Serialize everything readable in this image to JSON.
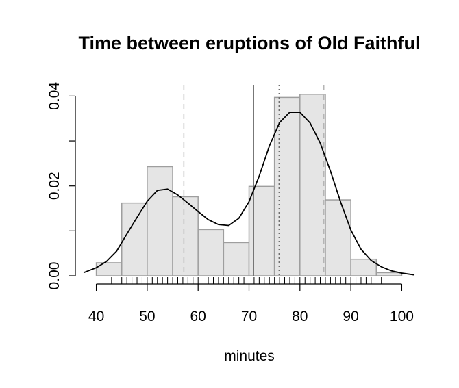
{
  "chart_data": {
    "type": "bar",
    "title": "Time between eruptions of Old Faithful",
    "xlabel": "minutes",
    "ylabel": "",
    "xlim": [
      37.5,
      102.5
    ],
    "ylim": [
      0,
      0.0425
    ],
    "x_ticks": [
      40,
      50,
      60,
      70,
      80,
      90,
      100
    ],
    "x_tick_labels": [
      "40",
      "50",
      "60",
      "70",
      "80",
      "90",
      "100"
    ],
    "y_ticks": [
      0,
      0.01,
      0.02,
      0.03,
      0.04
    ],
    "y_tick_labels": [
      "0.00",
      "",
      "0.02",
      "",
      "0.04"
    ],
    "histogram": {
      "bin_edges": [
        40,
        45,
        50,
        55,
        60,
        65,
        70,
        75,
        80,
        85,
        90,
        95,
        100
      ],
      "density": [
        0.0029,
        0.0162,
        0.0243,
        0.0176,
        0.0103,
        0.0074,
        0.0199,
        0.0397,
        0.0404,
        0.0169,
        0.0037,
        0.0007
      ],
      "fill_color": "#e5e5e5",
      "edge_color": "#9e9e9e"
    },
    "density_curve": {
      "x": [
        37.5,
        40,
        42,
        44,
        46,
        48,
        50,
        52,
        54,
        56,
        58,
        60,
        62,
        64,
        66,
        68,
        70,
        72,
        74,
        76,
        78,
        80,
        82,
        84,
        86,
        88,
        90,
        92,
        94,
        96,
        98,
        100,
        102.5
      ],
      "y": [
        0.0007,
        0.0018,
        0.0032,
        0.0055,
        0.0093,
        0.013,
        0.0166,
        0.019,
        0.0193,
        0.018,
        0.0162,
        0.0143,
        0.0125,
        0.0114,
        0.0112,
        0.0128,
        0.0165,
        0.0222,
        0.0289,
        0.0341,
        0.0364,
        0.0364,
        0.034,
        0.0295,
        0.0233,
        0.0164,
        0.0102,
        0.0059,
        0.0034,
        0.002,
        0.0011,
        0.0006,
        0.0002
      ],
      "color": "#000000"
    },
    "reference_lines": [
      {
        "x": 57.2,
        "style": "dashed",
        "color": "#b5b5b5"
      },
      {
        "x": 70.9,
        "style": "solid",
        "color": "#6e6e6e"
      },
      {
        "x": 75.9,
        "style": "dotted",
        "color": "#6e6e6e"
      },
      {
        "x": 84.7,
        "style": "dashed",
        "color": "#b5b5b5"
      }
    ],
    "rug": [
      43,
      45,
      46,
      47,
      48,
      49,
      50,
      51,
      52,
      53,
      54,
      55,
      56,
      57,
      58,
      59,
      60,
      62,
      63,
      64,
      65,
      66,
      67,
      68,
      69,
      70,
      71,
      72,
      73,
      74,
      75,
      76,
      77,
      78,
      79,
      80,
      81,
      82,
      83,
      84,
      85,
      86,
      87,
      88,
      89,
      90,
      91,
      92,
      93,
      94,
      96
    ],
    "grid": false,
    "legend": "none"
  }
}
